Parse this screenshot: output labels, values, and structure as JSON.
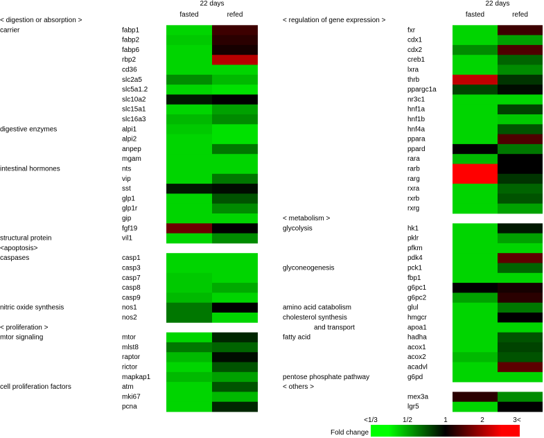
{
  "chart_data": {
    "type": "heatmap",
    "legend": {
      "title": "Fold change",
      "ticks": [
        "<1/3",
        "1/2",
        "1",
        "2",
        "3<"
      ]
    },
    "panels": [
      {
        "header": "22 days",
        "columns": [
          "fasted",
          "refed"
        ],
        "rows": [
          {
            "section": "< digestion or absorption >"
          },
          {
            "category": "carrier",
            "gene": "fabp1",
            "values": [
              0.4,
              1.3
            ]
          },
          {
            "gene": "fabp2",
            "values": [
              0.42,
              1.2
            ]
          },
          {
            "gene": "fabp6",
            "values": [
              0.4,
              1.1
            ]
          },
          {
            "gene": "rbp2",
            "values": [
              0.4,
              2.2
            ]
          },
          {
            "gene": "cd36",
            "values": [
              0.4,
              0.4
            ]
          },
          {
            "gene": "slc2a5",
            "values": [
              0.55,
              0.45
            ]
          },
          {
            "gene": "slc5a1.2",
            "values": [
              0.4,
              0.38
            ]
          },
          {
            "gene": "slc10a2",
            "values": [
              0.9,
              1.0
            ]
          },
          {
            "gene": "slc15a1",
            "values": [
              0.4,
              0.5
            ]
          },
          {
            "gene": "slc16a3",
            "values": [
              0.45,
              0.55
            ]
          },
          {
            "category": "digestive enzymes",
            "gene": "alpi1",
            "values": [
              0.42,
              0.38
            ]
          },
          {
            "gene": "alpi2",
            "values": [
              0.4,
              0.38
            ]
          },
          {
            "gene": "anpep",
            "values": [
              0.4,
              0.6
            ]
          },
          {
            "gene": "mgam",
            "values": [
              0.4,
              0.4
            ]
          },
          {
            "category": "intestinal hormones",
            "gene": "nts",
            "values": [
              0.4,
              0.4
            ]
          },
          {
            "gene": "vip",
            "values": [
              0.4,
              0.6
            ]
          },
          {
            "gene": "sst",
            "values": [
              0.9,
              0.95
            ]
          },
          {
            "gene": "glp1",
            "values": [
              0.4,
              0.7
            ]
          },
          {
            "gene": "glp1r",
            "values": [
              0.4,
              0.55
            ]
          },
          {
            "gene": "gip",
            "values": [
              0.4,
              0.4
            ]
          },
          {
            "gene": "fgf19",
            "values": [
              1.6,
              1.0
            ]
          },
          {
            "category": "structural protein",
            "gene": "vil1",
            "values": [
              0.4,
              0.55
            ]
          },
          {
            "section": "<apoptosis>"
          },
          {
            "category": "caspases",
            "gene": "casp1",
            "values": [
              0.4,
              0.4
            ]
          },
          {
            "gene": "casp3",
            "values": [
              0.4,
              0.4
            ]
          },
          {
            "gene": "casp7",
            "values": [
              0.42,
              0.4
            ]
          },
          {
            "gene": "casp8",
            "values": [
              0.42,
              0.48
            ]
          },
          {
            "gene": "casp9",
            "values": [
              0.45,
              0.4
            ]
          },
          {
            "category": "nitric oxide synthesis",
            "gene": "nos1",
            "values": [
              0.6,
              1.0
            ]
          },
          {
            "gene": "nos2",
            "values": [
              0.6,
              0.4
            ]
          },
          {
            "section": "< proliferation >"
          },
          {
            "category": "mtor signaling",
            "gene": "mtor",
            "values": [
              0.4,
              0.85
            ]
          },
          {
            "gene": "mlst8",
            "values": [
              0.6,
              0.65
            ]
          },
          {
            "gene": "raptor",
            "values": [
              0.45,
              0.95
            ]
          },
          {
            "gene": "rictor",
            "values": [
              0.4,
              0.7
            ]
          },
          {
            "gene": "mapkap1",
            "values": [
              0.45,
              0.5
            ]
          },
          {
            "category": "cell proliferation factors",
            "gene": "atm",
            "values": [
              0.4,
              0.7
            ]
          },
          {
            "gene": "mki67",
            "values": [
              0.4,
              0.45
            ]
          },
          {
            "gene": "pcna",
            "values": [
              0.4,
              0.85
            ]
          }
        ]
      },
      {
        "header": "22 days",
        "columns": [
          "fasted",
          "refed"
        ],
        "rows": [
          {
            "section": "< regulation of gene expression >"
          },
          {
            "gene": "fxr",
            "values": [
              0.4,
              1.3
            ]
          },
          {
            "gene": "cdx1",
            "values": [
              0.4,
              0.5
            ]
          },
          {
            "gene": "cdx2",
            "values": [
              0.55,
              1.4
            ]
          },
          {
            "gene": "creb1",
            "values": [
              0.4,
              0.65
            ]
          },
          {
            "gene": "lxra",
            "values": [
              0.4,
              0.55
            ]
          },
          {
            "gene": "thrb",
            "values": [
              2.3,
              0.8
            ]
          },
          {
            "gene": "ppargc1a",
            "values": [
              0.75,
              0.95
            ]
          },
          {
            "gene": "nr3c1",
            "values": [
              0.4,
              0.4
            ]
          },
          {
            "gene": "hnf1a",
            "values": [
              0.4,
              0.75
            ]
          },
          {
            "gene": "hnf1b",
            "values": [
              0.4,
              0.42
            ]
          },
          {
            "gene": "hnf4a",
            "values": [
              0.4,
              0.7
            ]
          },
          {
            "gene": "ppara",
            "values": [
              0.4,
              1.4
            ]
          },
          {
            "gene": "ppard",
            "values": [
              1.0,
              0.6
            ]
          },
          {
            "gene": "rara",
            "values": [
              0.45,
              1.0
            ]
          },
          {
            "gene": "rarb",
            "values": [
              3.0,
              1.0
            ]
          },
          {
            "gene": "rarg",
            "values": [
              3.0,
              0.8
            ]
          },
          {
            "gene": "rxra",
            "values": [
              0.4,
              0.65
            ]
          },
          {
            "gene": "rxrb",
            "values": [
              0.4,
              0.7
            ]
          },
          {
            "gene": "rxrg",
            "values": [
              0.4,
              0.5
            ]
          },
          {
            "section": "< metabolism >"
          },
          {
            "category": "glycolysis",
            "gene": "hk1",
            "values": [
              0.4,
              0.9
            ]
          },
          {
            "gene": "pklr",
            "values": [
              0.4,
              0.5
            ]
          },
          {
            "gene": "pfkm",
            "values": [
              0.4,
              0.4
            ]
          },
          {
            "gene": "pdk4",
            "values": [
              0.4,
              1.5
            ]
          },
          {
            "category": "glyconeogenesis",
            "gene": "pck1",
            "values": [
              0.4,
              0.65
            ]
          },
          {
            "gene": "fbp1",
            "values": [
              0.4,
              0.4
            ]
          },
          {
            "gene": "g6pc1",
            "values": [
              1.0,
              1.1
            ]
          },
          {
            "gene": "g6pc2",
            "values": [
              0.5,
              1.2
            ]
          },
          {
            "category": "amino acid catabolism",
            "gene": "glul",
            "values": [
              0.4,
              0.6
            ]
          },
          {
            "category": "cholesterol synthesis",
            "gene": "hmgcr",
            "values": [
              0.4,
              1.0
            ]
          },
          {
            "category": "and transport",
            "category_indent": true,
            "gene": "apoa1",
            "values": [
              0.4,
              0.4
            ]
          },
          {
            "category": "fatty acid",
            "gene": "hadha",
            "values": [
              0.4,
              0.7
            ]
          },
          {
            "gene": "acox1",
            "values": [
              0.4,
              0.75
            ]
          },
          {
            "gene": "acox2",
            "values": [
              0.45,
              0.7
            ]
          },
          {
            "gene": "acadvl",
            "values": [
              0.4,
              1.5
            ]
          },
          {
            "category": "pentose phosphate pathway",
            "gene": "g6pd",
            "values": [
              0.4,
              0.4
            ]
          },
          {
            "section": "< others >"
          },
          {
            "gene": "mex3a",
            "values": [
              1.2,
              0.55
            ]
          },
          {
            "gene": "lgr5",
            "values": [
              0.4,
              1.0
            ]
          }
        ]
      }
    ]
  }
}
